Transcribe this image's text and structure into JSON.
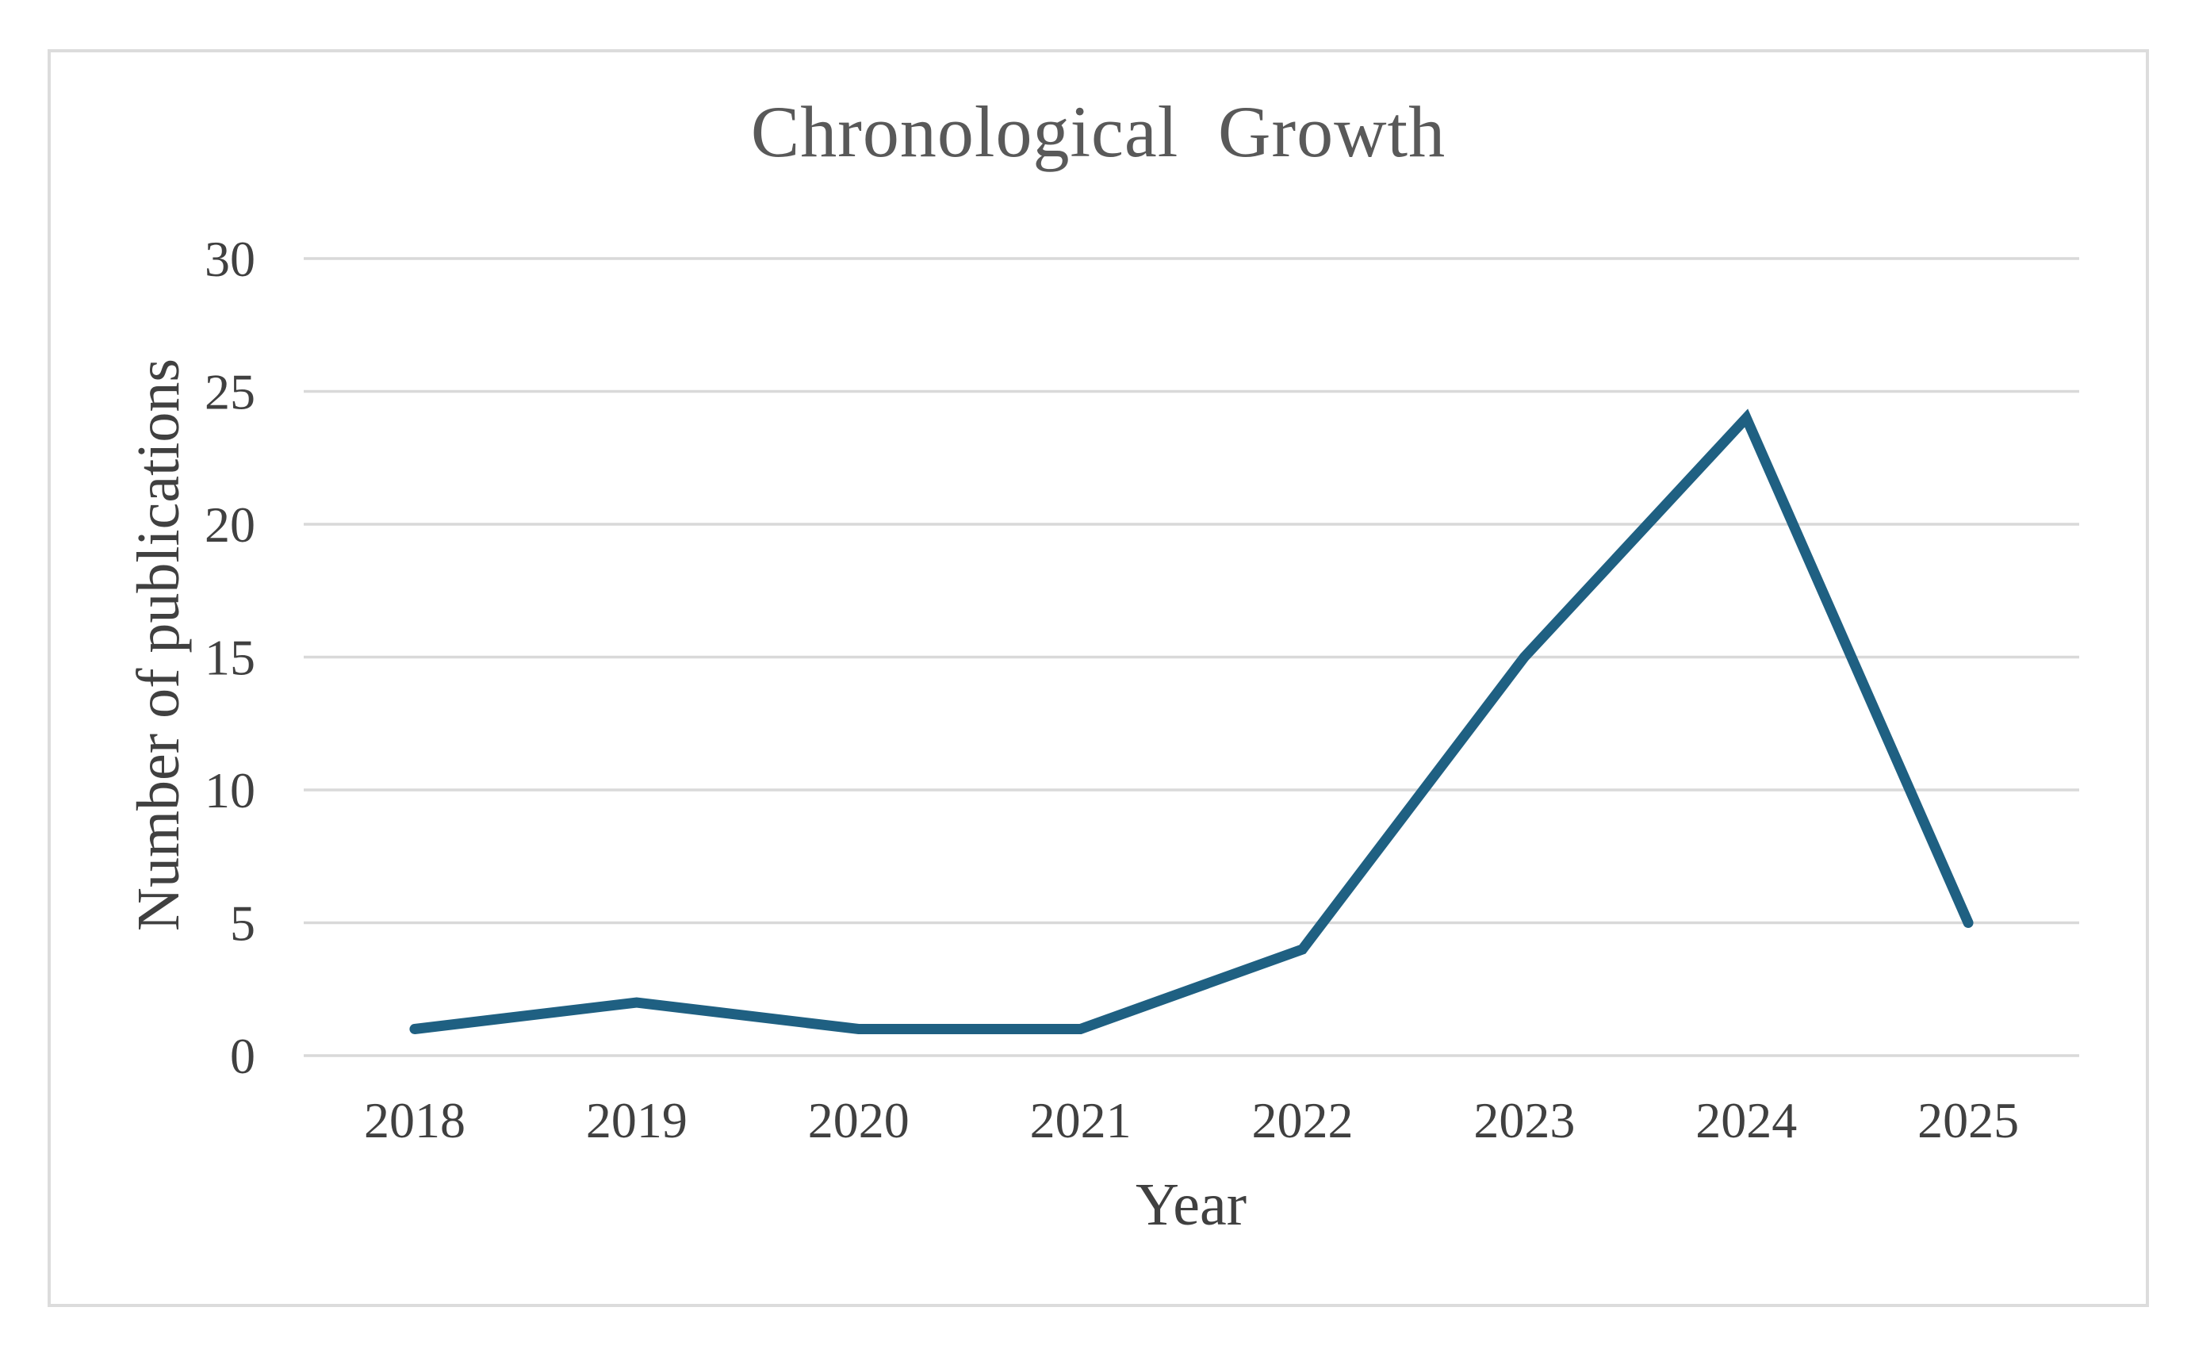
{
  "page": {
    "background": "#ffffff"
  },
  "chart_data": {
    "type": "line",
    "title": "Chronological Growth",
    "xlabel": "Year",
    "ylabel": "Number of publications",
    "categories": [
      "2018",
      "2019",
      "2020",
      "2021",
      "2022",
      "2023",
      "2024",
      "2025"
    ],
    "series": [
      {
        "name": "Number of publications",
        "values": [
          1,
          2,
          1,
          1,
          4,
          15,
          24,
          5
        ]
      }
    ],
    "ylim": [
      0,
      30
    ],
    "ytick_interval": 5,
    "yticks": [
      0,
      5,
      10,
      15,
      20,
      25,
      30
    ],
    "grid": "horizontal",
    "legend": false,
    "colors": {
      "line": "#1f6082",
      "gridline": "#d9d9d9",
      "frame_border": "#dcdcdc",
      "tick_text": "#404040",
      "axis_title_text": "#404040",
      "title_text": "#595959"
    }
  }
}
